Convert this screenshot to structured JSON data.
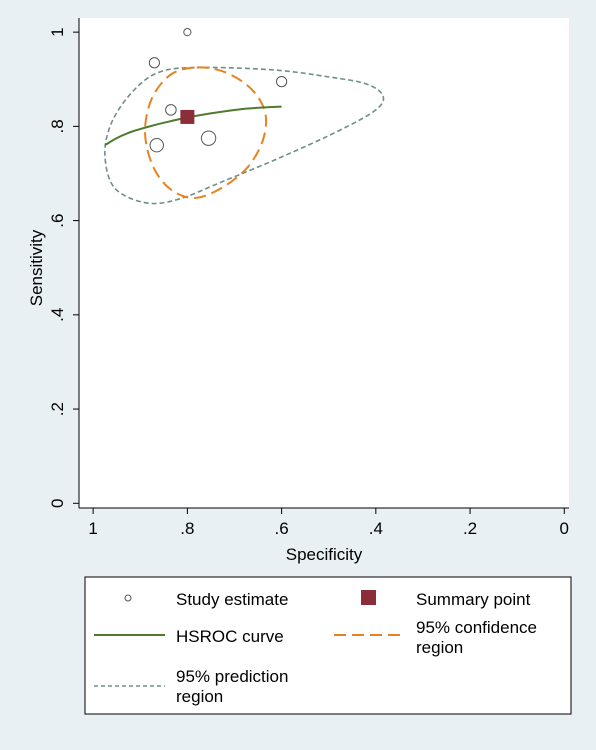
{
  "chart_data": {
    "type": "scatter",
    "xlabel": "Specificity",
    "ylabel": "Sensitivity",
    "x_reversed": true,
    "xlim": [
      1.03,
      -0.01
    ],
    "ylim": [
      -0.01,
      1.03
    ],
    "x_ticks": [
      1,
      0.8,
      0.6,
      0.4,
      0.2,
      0
    ],
    "x_tick_labels": [
      "1",
      ".8",
      ".6",
      ".4",
      ".2",
      "0"
    ],
    "y_ticks": [
      0,
      0.2,
      0.4,
      0.6,
      0.8,
      1
    ],
    "y_tick_labels": [
      "0",
      ".2",
      ".4",
      ".6",
      ".8",
      "1"
    ],
    "grid": false,
    "legend_position": "bottom",
    "colors": {
      "background": "#e9f0f4",
      "plot_background": "#ffffff",
      "hsroc": "#4e7c2e",
      "confidence": "#e8821e",
      "prediction": "#6f8f8a",
      "summary": "#8b2e3a",
      "study": "#555555"
    },
    "study_estimates": [
      {
        "specificity": 0.8,
        "sensitivity": 1.0,
        "weight": 1
      },
      {
        "specificity": 0.87,
        "sensitivity": 0.935,
        "weight": 2
      },
      {
        "specificity": 0.6,
        "sensitivity": 0.895,
        "weight": 2
      },
      {
        "specificity": 0.835,
        "sensitivity": 0.835,
        "weight": 2.2
      },
      {
        "specificity": 0.865,
        "sensitivity": 0.76,
        "weight": 3.5
      },
      {
        "specificity": 0.755,
        "sensitivity": 0.775,
        "weight": 4
      }
    ],
    "summary_point": {
      "specificity": 0.8,
      "sensitivity": 0.82
    },
    "hsroc_curve": [
      {
        "specificity": 0.975,
        "sensitivity": 0.76
      },
      {
        "specificity": 0.95,
        "sensitivity": 0.775
      },
      {
        "specificity": 0.92,
        "sensitivity": 0.788
      },
      {
        "specificity": 0.88,
        "sensitivity": 0.8
      },
      {
        "specificity": 0.84,
        "sensitivity": 0.81
      },
      {
        "specificity": 0.8,
        "sensitivity": 0.819
      },
      {
        "specificity": 0.76,
        "sensitivity": 0.826
      },
      {
        "specificity": 0.72,
        "sensitivity": 0.832
      },
      {
        "specificity": 0.68,
        "sensitivity": 0.837
      },
      {
        "specificity": 0.64,
        "sensitivity": 0.84
      },
      {
        "specificity": 0.6,
        "sensitivity": 0.842
      }
    ],
    "confidence_region": [
      {
        "specificity": 0.78,
        "sensitivity": 0.925
      },
      {
        "specificity": 0.72,
        "sensitivity": 0.915
      },
      {
        "specificity": 0.665,
        "sensitivity": 0.88
      },
      {
        "specificity": 0.635,
        "sensitivity": 0.83
      },
      {
        "specificity": 0.64,
        "sensitivity": 0.77
      },
      {
        "specificity": 0.675,
        "sensitivity": 0.71
      },
      {
        "specificity": 0.735,
        "sensitivity": 0.665
      },
      {
        "specificity": 0.79,
        "sensitivity": 0.648
      },
      {
        "specificity": 0.84,
        "sensitivity": 0.67
      },
      {
        "specificity": 0.875,
        "sensitivity": 0.72
      },
      {
        "specificity": 0.89,
        "sensitivity": 0.79
      },
      {
        "specificity": 0.875,
        "sensitivity": 0.86
      },
      {
        "specificity": 0.835,
        "sensitivity": 0.91
      }
    ],
    "prediction_region": [
      {
        "specificity": 0.78,
        "sensitivity": 0.925
      },
      {
        "specificity": 0.62,
        "sensitivity": 0.92
      },
      {
        "specificity": 0.5,
        "sensitivity": 0.905
      },
      {
        "specificity": 0.42,
        "sensitivity": 0.89
      },
      {
        "specificity": 0.385,
        "sensitivity": 0.865
      },
      {
        "specificity": 0.4,
        "sensitivity": 0.835
      },
      {
        "specificity": 0.48,
        "sensitivity": 0.79
      },
      {
        "specificity": 0.6,
        "sensitivity": 0.735
      },
      {
        "specificity": 0.72,
        "sensitivity": 0.685
      },
      {
        "specificity": 0.82,
        "sensitivity": 0.645
      },
      {
        "specificity": 0.89,
        "sensitivity": 0.638
      },
      {
        "specificity": 0.955,
        "sensitivity": 0.67
      },
      {
        "specificity": 0.975,
        "sensitivity": 0.74
      },
      {
        "specificity": 0.96,
        "sensitivity": 0.81
      },
      {
        "specificity": 0.915,
        "sensitivity": 0.875
      },
      {
        "specificity": 0.86,
        "sensitivity": 0.915
      }
    ],
    "legend": {
      "study": "Study estimate",
      "summary": "Summary point",
      "hsroc": "HSROC curve",
      "confidence_line1": "95% confidence",
      "confidence_line2": "region",
      "prediction_line1": "95% prediction",
      "prediction_line2": "region"
    }
  }
}
